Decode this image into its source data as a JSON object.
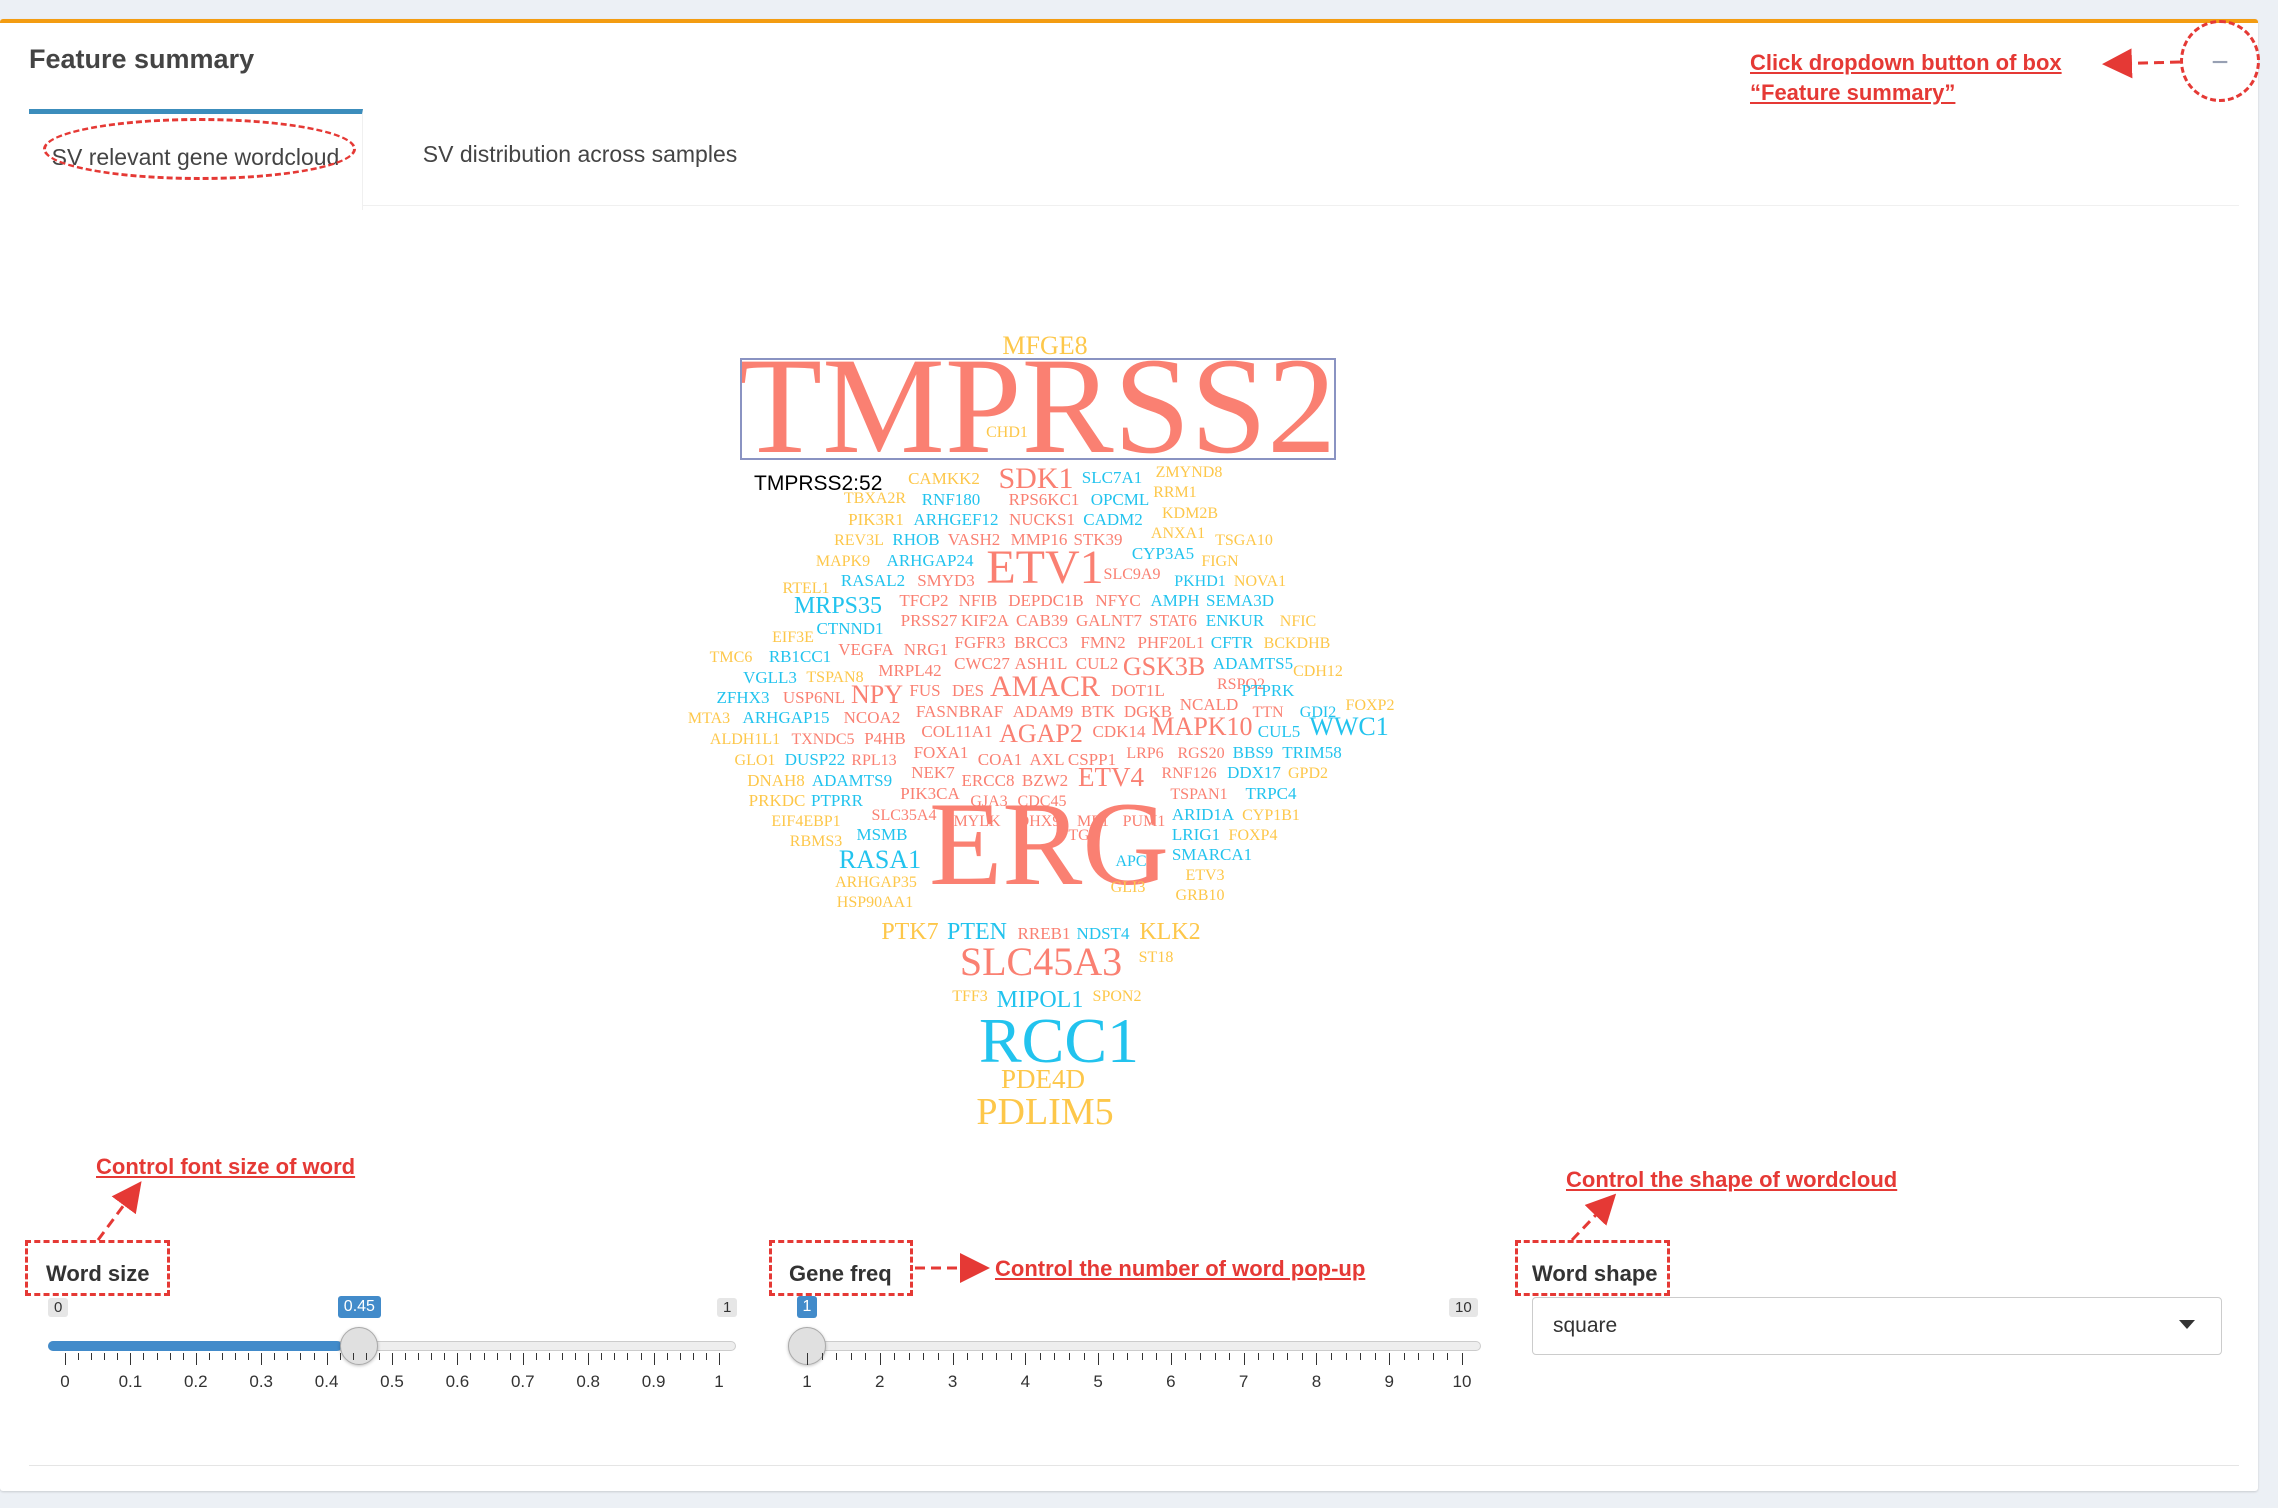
{
  "box": {
    "title": "Feature summary",
    "collapse_icon": "−"
  },
  "tabs": [
    {
      "label": "SV relevant gene wordcloud",
      "active": true
    },
    {
      "label": "SV distribution across samples",
      "active": false
    }
  ],
  "wordcloud": {
    "tooltip": "TMPRSS2:52",
    "colors": {
      "salmon": "#fa8072",
      "gold": "#fdc74a",
      "cyan": "#22c3ee"
    },
    "words": [
      [
        "MFGE8",
        "gold"
      ],
      [
        "TMPRSS2",
        "salmon"
      ],
      [
        "CHD1",
        "gold"
      ],
      [
        "TMPRSS2:52",
        "tooltip"
      ],
      [
        "CAMKK2",
        "gold"
      ],
      [
        "SDK1",
        "salmon"
      ],
      [
        "SLC7A1",
        "cyan"
      ],
      [
        "ZMYND8",
        "gold"
      ],
      [
        "RRM1",
        "gold"
      ],
      [
        "RNF180",
        "cyan"
      ],
      [
        "RPS6KC1",
        "salmon"
      ],
      [
        "OPCML",
        "cyan"
      ],
      [
        "KDM2B",
        "gold"
      ],
      [
        "PIK3R1",
        "gold"
      ],
      [
        "ARHGEF12",
        "cyan"
      ],
      [
        "NUCKS1",
        "salmon"
      ],
      [
        "CADM2",
        "cyan"
      ],
      [
        "ANXA1",
        "gold"
      ],
      [
        "TSGA10",
        "gold"
      ],
      [
        "REV3L",
        "gold"
      ],
      [
        "RHOB",
        "cyan"
      ],
      [
        "VASH2",
        "salmon"
      ],
      [
        "MMP16",
        "salmon"
      ],
      [
        "STK39",
        "salmon"
      ],
      [
        "CYP3A5",
        "cyan"
      ],
      [
        "FIGN",
        "gold"
      ],
      [
        "MAPK9",
        "gold"
      ],
      [
        "ARHGAP24",
        "cyan"
      ],
      [
        "ETV1",
        "salmon"
      ],
      [
        "SLC9A9",
        "salmon"
      ],
      [
        "PKHD1",
        "cyan"
      ],
      [
        "NOVA1",
        "gold"
      ],
      [
        "RTEL1",
        "gold"
      ],
      [
        "RASAL2",
        "cyan"
      ],
      [
        "SMYD3",
        "salmon"
      ],
      [
        "MRPS35",
        "cyan"
      ],
      [
        "TFCP2",
        "salmon"
      ],
      [
        "NFIB",
        "salmon"
      ],
      [
        "DEPDC1B",
        "salmon"
      ],
      [
        "NFYC",
        "salmon"
      ],
      [
        "AMPH",
        "cyan"
      ],
      [
        "SEMA3D",
        "cyan"
      ],
      [
        "EIF3E",
        "gold"
      ],
      [
        "CTNND1",
        "cyan"
      ],
      [
        "PRSS27",
        "salmon"
      ],
      [
        "KIF2A",
        "salmon"
      ],
      [
        "CAB39",
        "salmon"
      ],
      [
        "GALNT7",
        "salmon"
      ],
      [
        "STAT6",
        "salmon"
      ],
      [
        "ENKUR",
        "cyan"
      ],
      [
        "NFIC",
        "gold"
      ],
      [
        "TMC6",
        "gold"
      ],
      [
        "RB1CC1",
        "cyan"
      ],
      [
        "VEGFA",
        "salmon"
      ],
      [
        "NRG1",
        "salmon"
      ],
      [
        "FGFR3",
        "salmon"
      ],
      [
        "BRCC3",
        "salmon"
      ],
      [
        "FMN2",
        "salmon"
      ],
      [
        "PHF20L1",
        "salmon"
      ],
      [
        "CFTR",
        "cyan"
      ],
      [
        "BCKDHB",
        "gold"
      ],
      [
        "VGLL3",
        "cyan"
      ],
      [
        "TSPAN8",
        "gold"
      ],
      [
        "MRPL42",
        "salmon"
      ],
      [
        "CWC27",
        "salmon"
      ],
      [
        "ASH1L",
        "salmon"
      ],
      [
        "CUL2",
        "salmon"
      ],
      [
        "GSK3B",
        "salmon"
      ],
      [
        "ADAMTS5",
        "cyan"
      ],
      [
        "CDH12",
        "gold"
      ],
      [
        "ZFHX3",
        "cyan"
      ],
      [
        "USP6NL",
        "salmon"
      ],
      [
        "NPY",
        "salmon"
      ],
      [
        "FUS",
        "salmon"
      ],
      [
        "DES",
        "salmon"
      ],
      [
        "AMACR",
        "salmon"
      ],
      [
        "DOT1L",
        "salmon"
      ],
      [
        "RSPO2",
        "salmon"
      ],
      [
        "PTPRK",
        "cyan"
      ],
      [
        "FOXP2",
        "gold"
      ],
      [
        "MTA3",
        "gold"
      ],
      [
        "ARHGAP15",
        "cyan"
      ],
      [
        "NCOA2",
        "salmon"
      ],
      [
        "FASN",
        "salmon"
      ],
      [
        "BRAF",
        "salmon"
      ],
      [
        "ADAM9",
        "salmon"
      ],
      [
        "BTK",
        "salmon"
      ],
      [
        "DGKB",
        "salmon"
      ],
      [
        "NCALD",
        "salmon"
      ],
      [
        "TTN",
        "salmon"
      ],
      [
        "GDI2",
        "cyan"
      ],
      [
        "ALDH1L1",
        "gold"
      ],
      [
        "TXNDC5",
        "salmon"
      ],
      [
        "P4HB",
        "salmon"
      ],
      [
        "COL11A1",
        "salmon"
      ],
      [
        "AGAP2",
        "salmon"
      ],
      [
        "CDK14",
        "salmon"
      ],
      [
        "MAPK10",
        "salmon"
      ],
      [
        "CUL5",
        "cyan"
      ],
      [
        "WWC1",
        "cyan"
      ],
      [
        "GLO1",
        "gold"
      ],
      [
        "DUSP22",
        "cyan"
      ],
      [
        "RPL13",
        "salmon"
      ],
      [
        "FOXA1",
        "salmon"
      ],
      [
        "COA1",
        "salmon"
      ],
      [
        "AXL",
        "salmon"
      ],
      [
        "CSPP1",
        "salmon"
      ],
      [
        "LRP6",
        "salmon"
      ],
      [
        "RGS20",
        "salmon"
      ],
      [
        "BBS9",
        "cyan"
      ],
      [
        "TRIM58",
        "cyan"
      ],
      [
        "DNAH8",
        "gold"
      ],
      [
        "ADAMTS9",
        "cyan"
      ],
      [
        "NEK7",
        "salmon"
      ],
      [
        "ERCC8",
        "salmon"
      ],
      [
        "BZW2",
        "salmon"
      ],
      [
        "ETV4",
        "salmon"
      ],
      [
        "RNF126",
        "salmon"
      ],
      [
        "DDX17",
        "cyan"
      ],
      [
        "GPD2",
        "gold"
      ],
      [
        "PRKDC",
        "gold"
      ],
      [
        "PTPRR",
        "cyan"
      ],
      [
        "PIK3CA",
        "salmon"
      ],
      [
        "GJA3",
        "salmon"
      ],
      [
        "CDC45",
        "salmon"
      ],
      [
        "TSPAN1",
        "salmon"
      ],
      [
        "TRPC4",
        "cyan"
      ],
      [
        "EIF4EBP1",
        "gold"
      ],
      [
        "SLC35A4",
        "salmon"
      ],
      [
        "ME1",
        "salmon"
      ],
      [
        "PUM1",
        "salmon"
      ],
      [
        "ARID1A",
        "cyan"
      ],
      [
        "CYP1B1",
        "gold"
      ],
      [
        "RBMS3",
        "gold"
      ],
      [
        "MSMB",
        "cyan"
      ],
      [
        "MYLK",
        "salmon"
      ],
      [
        "DHX9",
        "salmon"
      ],
      [
        "LRIG1",
        "cyan"
      ],
      [
        "FOXP4",
        "gold"
      ],
      [
        "TG",
        "salmon"
      ],
      [
        "SMARCA1",
        "cyan"
      ],
      [
        "RASA1",
        "cyan"
      ],
      [
        "ERG",
        "salmon"
      ],
      [
        "APC",
        "cyan"
      ],
      [
        "ARHGAP35",
        "gold"
      ],
      [
        "ETV3",
        "gold"
      ],
      [
        "GLI3",
        "gold"
      ],
      [
        "GRB10",
        "gold"
      ],
      [
        "HSP90AA1",
        "gold"
      ],
      [
        "PTK7",
        "gold"
      ],
      [
        "PTEN",
        "cyan"
      ],
      [
        "RREB1",
        "salmon"
      ],
      [
        "NDST4",
        "cyan"
      ],
      [
        "KLK2",
        "gold"
      ],
      [
        "SLC45A3",
        "salmon"
      ],
      [
        "ST18",
        "gold"
      ],
      [
        "TFF3",
        "gold"
      ],
      [
        "MIPOL1",
        "cyan"
      ],
      [
        "SPON2",
        "gold"
      ],
      [
        "RCC1",
        "cyan"
      ],
      [
        "PDE4D",
        "gold"
      ],
      [
        "PDLIM5",
        "gold"
      ],
      [
        "TBXA2R",
        "gold"
      ]
    ]
  },
  "controls": {
    "word_size": {
      "label": "Word size",
      "min": "0",
      "max": "1",
      "value": "0.45",
      "fraction": 0.45,
      "ticks": [
        "0",
        "0.1",
        "0.2",
        "0.3",
        "0.4",
        "0.5",
        "0.6",
        "0.7",
        "0.8",
        "0.9",
        "1"
      ]
    },
    "gene_freq": {
      "label": "Gene freq",
      "min": "1",
      "max": "10",
      "value": "1",
      "fraction": 0,
      "ticks": [
        "1",
        "2",
        "3",
        "4",
        "5",
        "6",
        "7",
        "8",
        "9",
        "10"
      ]
    },
    "word_shape": {
      "label": "Word shape",
      "value": "square"
    }
  },
  "annotations": {
    "collapse": "Click dropdown button of box",
    "collapse_line2": "“Feature summary”",
    "font_size": "Control font size of word",
    "word_popup": "Control the number of word pop-up",
    "shape": "Control the shape of wordcloud"
  }
}
